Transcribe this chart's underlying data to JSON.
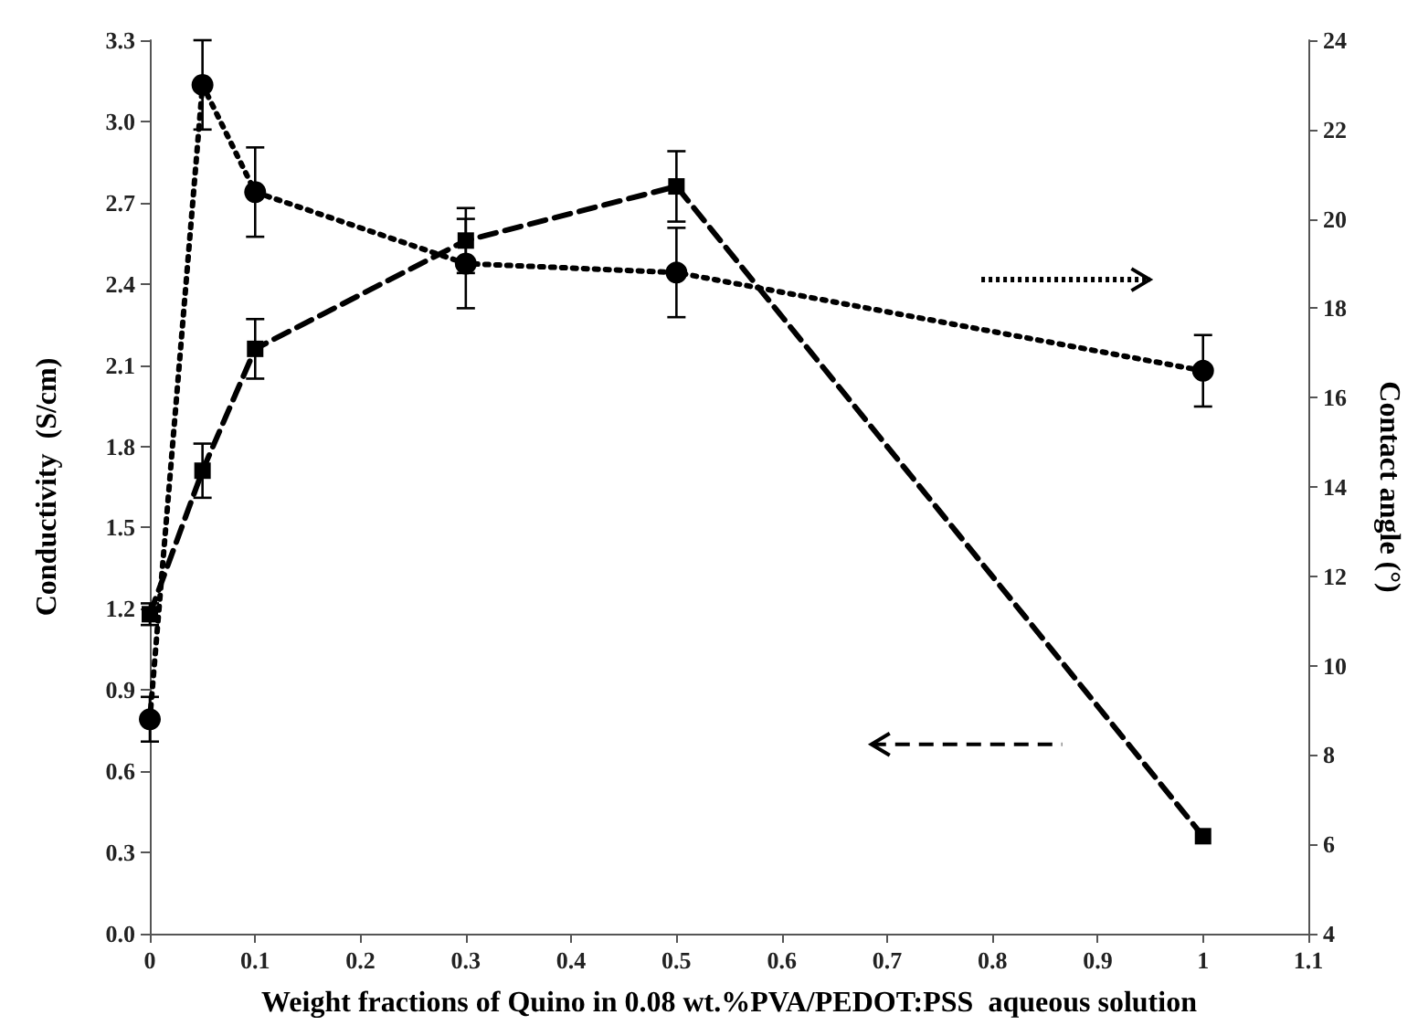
{
  "chart_data": {
    "type": "line",
    "xlabel": "Weight fractions of Quino in 0.08 wt.%PVA/PEDOT:PSS  aqueous solution",
    "ylabel": "Conductivity  (S/cm)",
    "y2label": "Contact angle (°)",
    "x": [
      0,
      0.05,
      0.1,
      0.3,
      0.5,
      1
    ],
    "series": [
      {
        "color": "#000000",
        "marker": "square",
        "line_style": "dashed",
        "values": [
          1.18,
          1.71,
          2.16,
          2.56,
          2.76,
          0.36
        ],
        "errors": [
          0.04,
          0.1,
          0.11,
          0.12,
          0.13,
          null
        ]
      },
      {
        "color": "#000000",
        "marker": "circle",
        "line_style": "dotted",
        "axis": "y2",
        "values": [
          8.8,
          23.0,
          20.6,
          19.0,
          18.8,
          16.6
        ],
        "errors": [
          0.5,
          1.0,
          1.0,
          1.0,
          1.0,
          0.8
        ]
      }
    ],
    "xlim": [
      0,
      1.1
    ],
    "xticks": [
      0,
      0.1,
      0.2,
      0.3,
      0.4,
      0.5,
      0.6,
      0.7,
      0.8,
      0.9,
      1,
      1.1
    ],
    "ylim": [
      0,
      3.3
    ],
    "yticks": [
      {
        "value": 0,
        "label": "0.0"
      },
      0.3,
      0.6,
      0.9,
      1.2,
      1.5,
      1.8,
      2.1,
      2.4,
      2.7,
      {
        "value": 3,
        "label": "3.0"
      },
      3.3
    ],
    "y2lim": [
      4,
      24
    ],
    "y2ticks": [
      4,
      6,
      8,
      10,
      12,
      14,
      16,
      18,
      20,
      22,
      24
    ]
  }
}
